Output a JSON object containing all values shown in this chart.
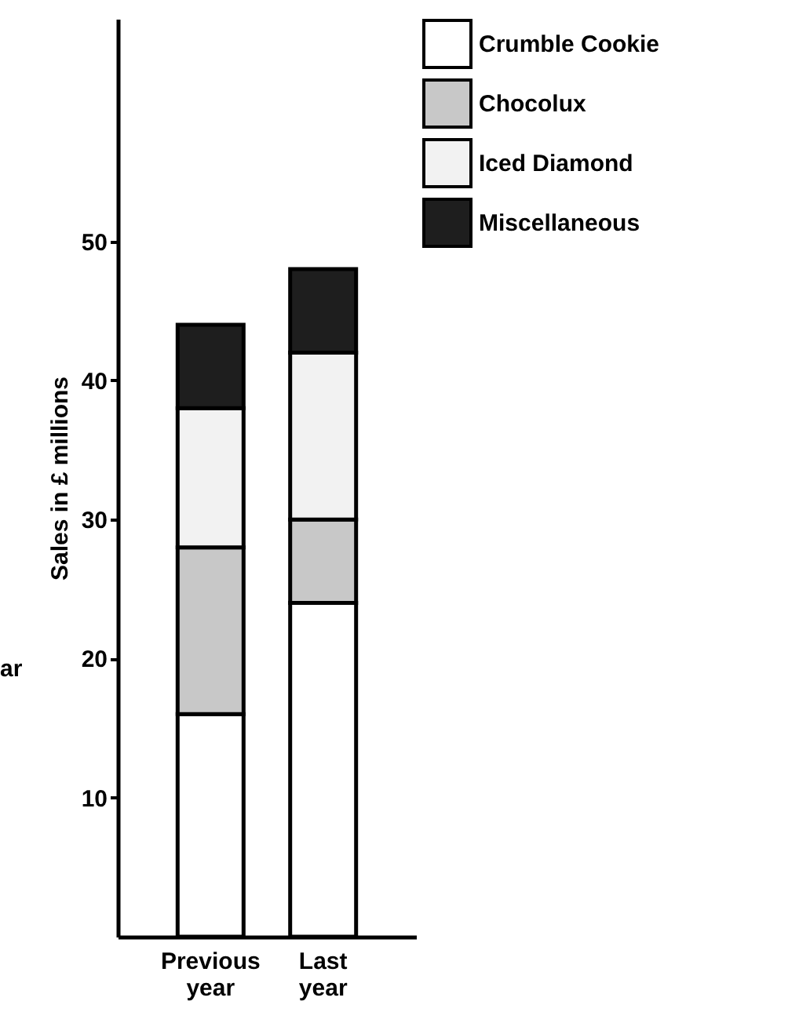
{
  "chart_data": {
    "type": "bar",
    "stacked": true,
    "categories": [
      "Previous year",
      "Last year"
    ],
    "ylabel": "Sales in £ millions",
    "ylim": [
      0,
      66
    ],
    "yticks": [
      10,
      20,
      30,
      40,
      50
    ],
    "grid": false,
    "legend": "right",
    "series": [
      {
        "name": "Crumble Cookie",
        "color": "#ffffff",
        "values": [
          16,
          24
        ]
      },
      {
        "name": "Chocolux",
        "color": "#c8c8c8",
        "values": [
          12,
          6
        ]
      },
      {
        "name": "Iced Diamond",
        "color": "#f2f2f2",
        "values": [
          10,
          12
        ]
      },
      {
        "name": "Miscellaneous",
        "color": "#1e1e1e",
        "values": [
          6,
          6
        ]
      }
    ],
    "annotations": [
      "ar"
    ]
  }
}
